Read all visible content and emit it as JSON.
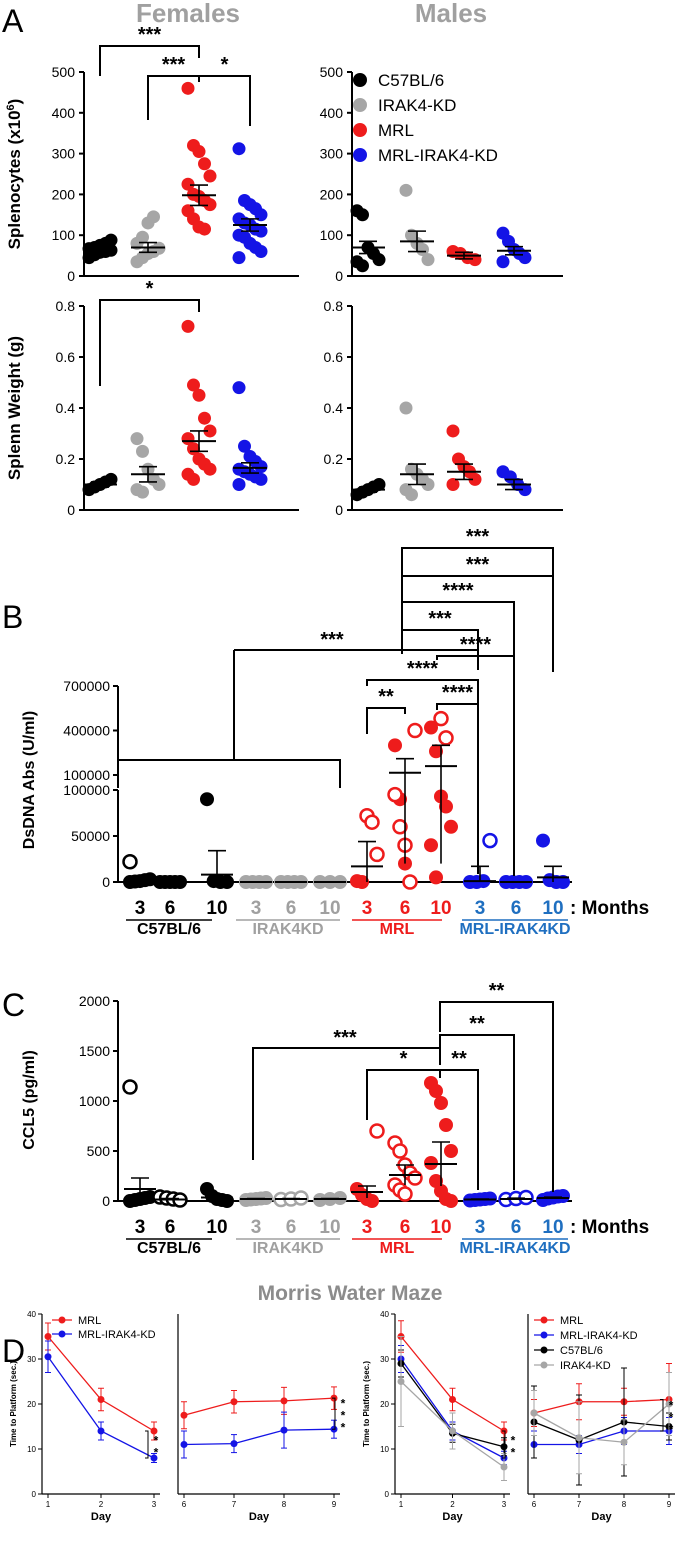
{
  "colors": {
    "black": "#000000",
    "gray": "#a6a6a6",
    "red": "#ee1c1c",
    "blue": "#1414e6",
    "lightblue": "#1f6fc0",
    "darkgray": "#7f7f7f"
  },
  "panel_letters": {
    "a": "A",
    "b": "B",
    "c": "C",
    "d": "D"
  },
  "headers": {
    "females": "Females",
    "males": "Males",
    "mwm": "Morris Water Maze"
  },
  "months_suffix": ": Months",
  "chart_data": [
    {
      "id": "A-spl-f",
      "type": "scatter",
      "title": "Females",
      "ylabel": "Splenocytes (x10^6)",
      "ylabel_parts": {
        "pre": "Splenocytes (x10",
        "sup": "6",
        "post": ")"
      },
      "ylim": [
        0,
        500
      ],
      "yticks": [
        0,
        100,
        200,
        300,
        400,
        500
      ],
      "groups": [
        {
          "name": "C57BL/6",
          "color": "black",
          "mean": 65,
          "sem": 7,
          "points": [
            45,
            52,
            58,
            60,
            63,
            67,
            70,
            75,
            80,
            88
          ]
        },
        {
          "name": "IRAK4-KD",
          "color": "gray",
          "mean": 70,
          "sem": 12,
          "points": [
            35,
            45,
            55,
            60,
            68,
            80,
            95,
            130,
            145
          ]
        },
        {
          "name": "MRL",
          "color": "red",
          "mean": 198,
          "sem": 25,
          "points": [
            460,
            320,
            305,
            275,
            245,
            225,
            200,
            195,
            185,
            175,
            160,
            140,
            120,
            115
          ]
        },
        {
          "name": "MRL-IRAK4-KD",
          "color": "blue",
          "mean": 125,
          "sem": 15,
          "points": [
            312,
            185,
            175,
            165,
            150,
            140,
            130,
            125,
            115,
            110,
            100,
            95,
            80,
            70,
            60,
            45
          ]
        }
      ],
      "brackets": [
        {
          "from": 0,
          "to": 2,
          "label": "***"
        },
        {
          "from": 1,
          "to": 2,
          "label": "***"
        },
        {
          "from": 2,
          "to": 3,
          "label": "*"
        }
      ]
    },
    {
      "id": "A-spl-m",
      "type": "scatter",
      "title": "Males",
      "ylim": [
        0,
        500
      ],
      "yticks": [
        0,
        100,
        200,
        300,
        400,
        500
      ],
      "legend": [
        "C57BL/6",
        "IRAK4-KD",
        "MRL",
        "MRL-IRAK4-KD"
      ],
      "groups": [
        {
          "name": "C57BL/6",
          "color": "black",
          "mean": 70,
          "sem": 15,
          "points": [
            160,
            150,
            70,
            55,
            40,
            35,
            25
          ]
        },
        {
          "name": "IRAK4-KD",
          "color": "gray",
          "mean": 85,
          "sem": 25,
          "points": [
            210,
            100,
            80,
            65,
            40
          ]
        },
        {
          "name": "MRL",
          "color": "red",
          "mean": 50,
          "sem": 8,
          "points": [
            60,
            55,
            45,
            40
          ]
        },
        {
          "name": "MRL-IRAK4-KD",
          "color": "blue",
          "mean": 62,
          "sem": 10,
          "points": [
            105,
            85,
            65,
            55,
            45,
            35
          ]
        }
      ]
    },
    {
      "id": "A-wt-f",
      "type": "scatter",
      "ylabel": "Splenn Weight (g)",
      "ylim": [
        0,
        0.8
      ],
      "yticks": [
        0.0,
        0.2,
        0.4,
        0.6,
        0.8
      ],
      "groups": [
        {
          "name": "C57BL/6",
          "color": "black",
          "mean": 0.1,
          "sem": 0.01,
          "points": [
            0.08,
            0.09,
            0.1,
            0.11,
            0.12
          ]
        },
        {
          "name": "IRAK4-KD",
          "color": "gray",
          "mean": 0.14,
          "sem": 0.03,
          "points": [
            0.28,
            0.23,
            0.16,
            0.12,
            0.1,
            0.08,
            0.07
          ]
        },
        {
          "name": "MRL",
          "color": "red",
          "mean": 0.27,
          "sem": 0.04,
          "points": [
            0.72,
            0.49,
            0.45,
            0.36,
            0.31,
            0.28,
            0.24,
            0.2,
            0.18,
            0.16,
            0.14,
            0.12
          ]
        },
        {
          "name": "MRL-IRAK4-KD",
          "color": "blue",
          "mean": 0.165,
          "sem": 0.02,
          "points": [
            0.48,
            0.25,
            0.21,
            0.19,
            0.17,
            0.16,
            0.15,
            0.14,
            0.13,
            0.12,
            0.1
          ]
        }
      ],
      "brackets": [
        {
          "from": 0,
          "to": 2,
          "label": "*"
        }
      ]
    },
    {
      "id": "A-wt-m",
      "type": "scatter",
      "ylim": [
        0,
        0.8
      ],
      "yticks": [
        0.0,
        0.2,
        0.4,
        0.6,
        0.8
      ],
      "groups": [
        {
          "name": "C57BL/6",
          "color": "black",
          "mean": 0.08,
          "sem": 0.01,
          "points": [
            0.06,
            0.07,
            0.08,
            0.09,
            0.1
          ]
        },
        {
          "name": "IRAK4-KD",
          "color": "gray",
          "mean": 0.14,
          "sem": 0.04,
          "points": [
            0.4,
            0.16,
            0.14,
            0.12,
            0.1,
            0.08,
            0.06
          ]
        },
        {
          "name": "MRL",
          "color": "red",
          "mean": 0.15,
          "sem": 0.03,
          "points": [
            0.31,
            0.2,
            0.17,
            0.15,
            0.12,
            0.1
          ]
        },
        {
          "name": "MRL-IRAK4-KD",
          "color": "blue",
          "mean": 0.1,
          "sem": 0.02,
          "points": [
            0.15,
            0.13,
            0.1,
            0.08
          ]
        }
      ]
    },
    {
      "id": "B",
      "type": "scatter",
      "ylabel": "DsDNA Abs (U/ml)",
      "ylim": [
        0,
        100000
      ],
      "yticks": [
        0,
        50000,
        100000
      ],
      "ylim_upper": [
        100000,
        700000
      ],
      "yticks_upper": [
        100000,
        400000,
        700000
      ],
      "ytick_labels": [
        "0",
        "50000",
        "100000",
        "100000",
        "400000",
        "700000"
      ],
      "months": [
        "3",
        "6",
        "10"
      ],
      "strain_labels": [
        "C57BL/6",
        "IRAK4KD",
        "MRL",
        "MRL-IRAK4KD"
      ],
      "month_colors": [
        "black",
        "gray",
        "red",
        "lightblue"
      ],
      "groups": [
        {
          "strain": "C57BL/6",
          "month": "3",
          "color": "black",
          "mean": 2000,
          "sem": 3000,
          "hollow": [
            22000
          ],
          "points": [
            0,
            500,
            1000,
            2000,
            3000
          ]
        },
        {
          "strain": "C57BL/6",
          "month": "6",
          "color": "black",
          "mean": 0,
          "sem": 0,
          "points": [
            0,
            0,
            0,
            0,
            0
          ]
        },
        {
          "strain": "C57BL/6",
          "month": "10",
          "color": "black",
          "mean": 8000,
          "sem": 26000,
          "points": [
            90000,
            1000,
            0,
            0
          ]
        },
        {
          "strain": "IRAK4KD",
          "month": "3",
          "color": "gray",
          "mean": 0,
          "sem": 0,
          "points": [
            0,
            0,
            0,
            0
          ]
        },
        {
          "strain": "IRAK4KD",
          "month": "6",
          "color": "gray",
          "mean": 0,
          "sem": 0,
          "points": [
            0,
            0,
            0,
            0
          ]
        },
        {
          "strain": "IRAK4KD",
          "month": "10",
          "color": "gray",
          "mean": 0,
          "sem": 0,
          "points": [
            0,
            0,
            0
          ]
        },
        {
          "strain": "MRL",
          "month": "3",
          "color": "red",
          "mean": 17000,
          "sem": 27000,
          "hollow": [
            72000,
            65000,
            30000
          ],
          "points": [
            1000,
            0
          ]
        },
        {
          "strain": "MRL",
          "month": "6",
          "color": "red",
          "mean": 115000,
          "sem": 95000,
          "hollow": [
            400000,
            95000,
            60000,
            40000,
            0
          ],
          "points": [
            300000,
            90000,
            20000,
            0
          ]
        },
        {
          "strain": "MRL",
          "month": "10",
          "color": "red",
          "mean": 160000,
          "sem": 140000,
          "hollow": [
            480000,
            350000
          ],
          "points": [
            420000,
            260000,
            93000,
            82000,
            60000,
            40000,
            5000
          ]
        },
        {
          "strain": "MRL-IRAK4KD",
          "month": "3",
          "color": "blue",
          "mean": 1000,
          "sem": 16000,
          "hollow": [
            45000
          ],
          "points": [
            0,
            0,
            1000
          ]
        },
        {
          "strain": "MRL-IRAK4KD",
          "month": "6",
          "color": "blue",
          "mean": 0,
          "sem": 0,
          "points": [
            0,
            0,
            0,
            0
          ]
        },
        {
          "strain": "MRL-IRAK4KD",
          "month": "10",
          "color": "blue",
          "mean": 5000,
          "sem": 12000,
          "points": [
            45000,
            2000,
            0,
            0
          ]
        }
      ],
      "brackets": [
        {
          "label": "**"
        },
        {
          "label": "****"
        },
        {
          "label": "****"
        },
        {
          "label": "****"
        },
        {
          "label": "***"
        },
        {
          "label": "***"
        },
        {
          "label": "****"
        },
        {
          "label": "***"
        },
        {
          "label": "***"
        }
      ]
    },
    {
      "id": "C",
      "type": "scatter",
      "ylabel": "CCL5  (pg/ml)",
      "ylim": [
        0,
        2000
      ],
      "yticks": [
        0,
        500,
        1000,
        1500,
        2000
      ],
      "months": [
        "3",
        "6",
        "10"
      ],
      "strain_labels": [
        "C57BL/6",
        "IRAK4KD",
        "MRL",
        "MRL-IRAK4KD"
      ],
      "groups": [
        {
          "strain": "C57BL/6",
          "month": "3",
          "color": "black",
          "mean": 120,
          "sem": 110,
          "hollow": [
            1140
          ],
          "points": [
            0,
            10,
            20,
            30,
            40
          ]
        },
        {
          "strain": "C57BL/6",
          "month": "6",
          "color": "black",
          "mean": 15,
          "sem": 10,
          "hollow": [
            40,
            30,
            20,
            10
          ],
          "points": []
        },
        {
          "strain": "C57BL/6",
          "month": "10",
          "color": "black",
          "mean": 35,
          "sem": 20,
          "points": [
            120,
            50,
            20,
            10,
            0
          ]
        },
        {
          "strain": "IRAK4KD",
          "month": "3",
          "color": "gray",
          "mean": 20,
          "sem": 5,
          "points": [
            10,
            15,
            20,
            25,
            30
          ]
        },
        {
          "strain": "IRAK4KD",
          "month": "6",
          "color": "gray",
          "mean": 20,
          "sem": 5,
          "hollow": [
            15,
            20,
            30
          ],
          "points": []
        },
        {
          "strain": "IRAK4KD",
          "month": "10",
          "color": "gray",
          "mean": 20,
          "sem": 5,
          "points": [
            10,
            20,
            30
          ]
        },
        {
          "strain": "MRL",
          "month": "3",
          "color": "red",
          "mean": 90,
          "sem": 60,
          "hollow": [
            700
          ],
          "points": [
            120,
            60,
            20,
            0
          ]
        },
        {
          "strain": "MRL",
          "month": "6",
          "color": "red",
          "mean": 260,
          "sem": 100,
          "hollow": [
            580,
            500,
            360,
            280,
            230,
            160,
            110,
            70
          ],
          "points": []
        },
        {
          "strain": "MRL",
          "month": "10",
          "color": "red",
          "mean": 370,
          "sem": 220,
          "hollow": [],
          "points": [
            1180,
            1100,
            980,
            760,
            500,
            380,
            200,
            100,
            20,
            0
          ]
        },
        {
          "strain": "MRL-IRAK4KD",
          "month": "3",
          "color": "blue",
          "mean": 15,
          "sem": 5,
          "points": [
            5,
            10,
            15,
            20,
            25
          ]
        },
        {
          "strain": "MRL-IRAK4KD",
          "month": "6",
          "color": "blue",
          "mean": 20,
          "sem": 8,
          "hollow": [
            15,
            25,
            35
          ],
          "points": []
        },
        {
          "strain": "MRL-IRAK4KD",
          "month": "10",
          "color": "blue",
          "mean": 30,
          "sem": 8,
          "points": [
            10,
            25,
            35,
            45,
            50
          ]
        }
      ],
      "brackets": [
        {
          "label": "***"
        },
        {
          "label": "*"
        },
        {
          "label": "**"
        },
        {
          "label": "**"
        },
        {
          "label": "**"
        }
      ]
    },
    {
      "id": "D1",
      "type": "line",
      "xlabel": "Day",
      "ylabel": "Time to Platform (sec.)",
      "x": [
        1,
        2,
        3
      ],
      "ylim": [
        0,
        40
      ],
      "yticks": [
        0,
        10,
        20,
        30,
        40
      ],
      "legend": [
        "MRL",
        "MRL-IRAK4-KD"
      ],
      "series": [
        {
          "name": "MRL",
          "color": "red",
          "values": [
            35,
            21,
            14
          ],
          "err": [
            3,
            2.5,
            2
          ]
        },
        {
          "name": "MRL-IRAK4-KD",
          "color": "blue",
          "values": [
            30.5,
            14,
            8
          ],
          "err": [
            3.5,
            2,
            1
          ]
        }
      ],
      "sig": "**"
    },
    {
      "id": "D2",
      "type": "line",
      "xlabel": "Day",
      "x": [
        6,
        7,
        8,
        9
      ],
      "ylim": [
        0,
        40
      ],
      "series": [
        {
          "name": "MRL",
          "color": "red",
          "values": [
            17.5,
            20.5,
            20.7,
            21.3
          ],
          "err": [
            3,
            2.5,
            3,
            2.5
          ]
        },
        {
          "name": "MRL-IRAK4-KD",
          "color": "blue",
          "values": [
            11,
            11.2,
            14.2,
            14.4
          ],
          "err": [
            3,
            2,
            4,
            2
          ]
        }
      ],
      "sig": "***"
    },
    {
      "id": "D3",
      "type": "line",
      "xlabel": "Day",
      "ylabel": "Time to Platform (sec.)",
      "x": [
        1,
        2,
        3
      ],
      "ylim": [
        0,
        40
      ],
      "yticks": [
        0,
        10,
        20,
        30,
        40
      ],
      "series": [
        {
          "name": "MRL",
          "color": "red",
          "values": [
            35,
            21,
            14
          ],
          "err": [
            3.5,
            2.5,
            2
          ]
        },
        {
          "name": "MRL-IRAK4-KD",
          "color": "blue",
          "values": [
            30,
            14,
            8
          ],
          "err": [
            3,
            2,
            1.5
          ]
        },
        {
          "name": "C57BL/6",
          "color": "black",
          "values": [
            29,
            13.5,
            10.5
          ],
          "err": [
            3,
            2,
            2
          ]
        },
        {
          "name": "IRAK4-KD",
          "color": "gray",
          "values": [
            25,
            14,
            6
          ],
          "err": [
            10,
            4,
            3
          ]
        }
      ],
      "sig": "**"
    },
    {
      "id": "D4",
      "type": "line",
      "xlabel": "Day",
      "x": [
        6,
        7,
        8,
        9
      ],
      "ylim": [
        0,
        40
      ],
      "legend": [
        "MRL",
        "MRL-IRAK4-KD",
        "C57BL/6",
        "IRAK4-KD"
      ],
      "series": [
        {
          "name": "MRL",
          "color": "red",
          "values": [
            18,
            20.5,
            20.5,
            21
          ],
          "err": [
            3,
            4,
            3,
            8
          ]
        },
        {
          "name": "MRL-IRAK4-KD",
          "color": "blue",
          "values": [
            11,
            11,
            14,
            14
          ],
          "err": [
            3,
            2,
            3,
            3
          ]
        },
        {
          "name": "C57BL/6",
          "color": "black",
          "values": [
            16,
            12,
            16,
            15
          ],
          "err": [
            8,
            10,
            12,
            3
          ]
        },
        {
          "name": "IRAK4-KD",
          "color": "gray",
          "values": [
            18,
            12.5,
            11.5,
            20
          ],
          "err": [
            5,
            8,
            5,
            7
          ]
        }
      ],
      "sig": "***"
    }
  ]
}
